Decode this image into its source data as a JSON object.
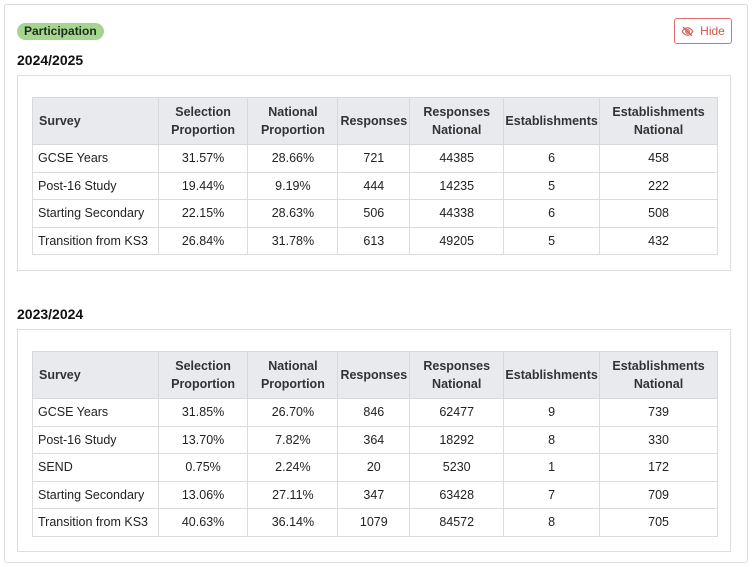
{
  "badge": "Participation",
  "hide_button": {
    "label": "Hide",
    "icon": "eye-slash-icon"
  },
  "columns": [
    "Survey",
    "Selection Proportion",
    "National Proportion",
    "Responses",
    "Responses National",
    "Establishments",
    "Establishments National"
  ],
  "column_lines": [
    [
      "Survey"
    ],
    [
      "Selection",
      "Proportion"
    ],
    [
      "National",
      "Proportion"
    ],
    [
      "Responses"
    ],
    [
      "Responses",
      "National"
    ],
    [
      "Establishments"
    ],
    [
      "Establishments",
      "National"
    ]
  ],
  "sections": [
    {
      "year": "2024/2025",
      "rows": [
        [
          "GCSE Years",
          "31.57%",
          "28.66%",
          "721",
          "44385",
          "6",
          "458"
        ],
        [
          "Post-16 Study",
          "19.44%",
          "9.19%",
          "444",
          "14235",
          "5",
          "222"
        ],
        [
          "Starting Secondary",
          "22.15%",
          "28.63%",
          "506",
          "44338",
          "6",
          "508"
        ],
        [
          "Transition from KS3",
          "26.84%",
          "31.78%",
          "613",
          "49205",
          "5",
          "432"
        ]
      ]
    },
    {
      "year": "2023/2024",
      "rows": [
        [
          "GCSE Years",
          "31.85%",
          "26.70%",
          "846",
          "62477",
          "9",
          "739"
        ],
        [
          "Post-16 Study",
          "13.70%",
          "7.82%",
          "364",
          "18292",
          "8",
          "330"
        ],
        [
          "SEND",
          "0.75%",
          "2.24%",
          "20",
          "5230",
          "1",
          "172"
        ],
        [
          "Starting Secondary",
          "13.06%",
          "27.11%",
          "347",
          "63428",
          "7",
          "709"
        ],
        [
          "Transition from KS3",
          "40.63%",
          "36.14%",
          "1079",
          "84572",
          "8",
          "705"
        ]
      ]
    }
  ]
}
